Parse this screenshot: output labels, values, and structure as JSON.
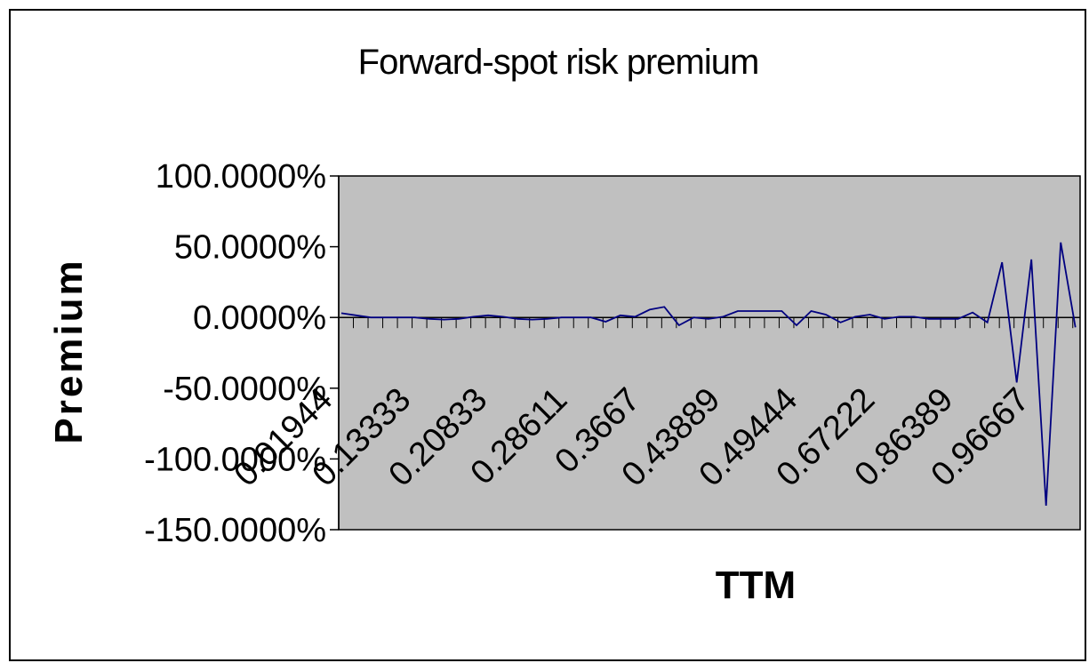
{
  "chart_data": {
    "type": "line",
    "title": "Forward-spot risk premium",
    "xlabel": "TTM",
    "ylabel": "Premium",
    "ylim": [
      -1.5,
      1.0
    ],
    "y_ticks": [
      "100.0000%",
      "50.0000%",
      "0.0000%",
      "-50.0000%",
      "-100.0000%",
      "-150.0000%"
    ],
    "y_tick_values": [
      1.0,
      0.5,
      0.0,
      -0.5,
      -1.0,
      -1.5
    ],
    "x_tick_labels": [
      "0.01944",
      "0.13333",
      "0.20833",
      "0.28611",
      "0.3667",
      "0.43889",
      "0.49444",
      "0.67222",
      "0.86389",
      "0.96667"
    ],
    "plot_background": "#c0c0c0",
    "series": [
      {
        "color": "#000080",
        "values": [
          0.03,
          0.015,
          0.0,
          0.0,
          0.0,
          0.0,
          -0.01,
          -0.015,
          -0.01,
          0.005,
          0.015,
          0.005,
          -0.01,
          -0.015,
          -0.01,
          0.0,
          0.0,
          0.0,
          -0.03,
          0.015,
          0.005,
          0.055,
          0.075,
          -0.055,
          0.0,
          -0.01,
          0.005,
          0.045,
          0.045,
          0.045,
          0.045,
          -0.055,
          0.045,
          0.02,
          -0.035,
          0.005,
          0.02,
          -0.01,
          0.005,
          0.005,
          -0.01,
          -0.01,
          -0.01,
          0.035,
          -0.035,
          0.39,
          -0.46,
          0.41,
          -1.33,
          0.53,
          -0.07
        ]
      }
    ],
    "grid": false,
    "legend": "none"
  }
}
